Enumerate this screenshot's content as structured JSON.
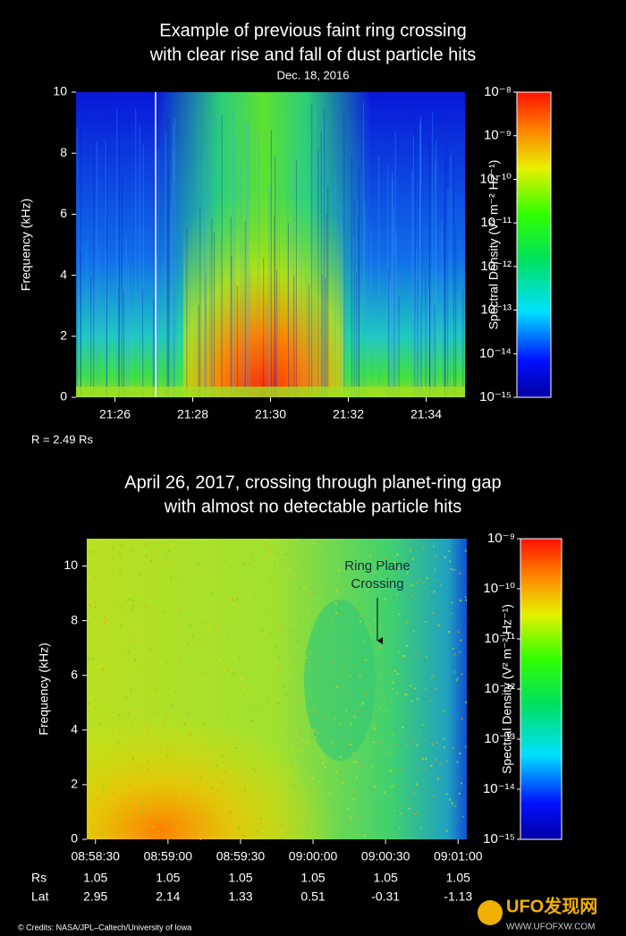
{
  "chart_data": [
    {
      "type": "spectrogram",
      "title": [
        "Example of previous faint ring crossing",
        "with clear rise and fall of dust particle hits"
      ],
      "subtitle": "Dec. 18, 2016",
      "ylabel": "Frequency (kHz)",
      "ylim": [
        0,
        10
      ],
      "yticks": [
        0,
        2,
        4,
        6,
        8,
        10
      ],
      "xticks": [
        "21:26",
        "21:28",
        "21:30",
        "21:32",
        "21:34"
      ],
      "colorbar_label": "Spectral Density (V² m⁻² Hz⁻¹)",
      "clim": [
        1e-15,
        1e-08
      ],
      "clog": true,
      "cticks": [
        {
          "value": 1e-15,
          "label": "10⁻¹⁵"
        },
        {
          "value": 1e-14,
          "label": "10⁻¹⁴"
        },
        {
          "value": 1e-13,
          "label": "10⁻¹³"
        },
        {
          "value": 1e-12,
          "label": "10⁻¹²"
        },
        {
          "value": 1e-11,
          "label": "10⁻¹¹"
        },
        {
          "value": 1e-10,
          "label": "10⁻¹⁰"
        },
        {
          "value": 1e-09,
          "label": "10⁻⁹"
        },
        {
          "value": 1e-08,
          "label": "10⁻⁸"
        }
      ],
      "note": "R = 2.49 Rs"
    },
    {
      "type": "spectrogram",
      "title": [
        "April 26, 2017, crossing through planet-ring gap",
        "with almost no detectable particle hits"
      ],
      "ylabel": "Frequency (kHz)",
      "ylim": [
        0,
        11
      ],
      "yticks": [
        0,
        2,
        4,
        6,
        8,
        10
      ],
      "xticks": [
        "08:58:30",
        "08:59:00",
        "08:59:30",
        "09:00:00",
        "09:00:30",
        "09:01:00"
      ],
      "colorbar_label": "Spectral Density (V² m⁻² Hz⁻¹)",
      "clim": [
        1e-15,
        1e-09
      ],
      "clog": true,
      "cticks": [
        {
          "value": 1e-15,
          "label": "10⁻¹⁵"
        },
        {
          "value": 1e-14,
          "label": "10⁻¹⁴"
        },
        {
          "value": 1e-13,
          "label": "10⁻¹³"
        },
        {
          "value": 1e-12,
          "label": "10⁻¹²"
        },
        {
          "value": 1e-11,
          "label": "10⁻¹¹"
        },
        {
          "value": 1e-10,
          "label": "10⁻¹⁰"
        },
        {
          "value": 1e-09,
          "label": "10⁻⁹"
        }
      ],
      "annotation": [
        "Ring Plane",
        "Crossing"
      ],
      "rows": [
        {
          "label": "Rs",
          "values": [
            1.05,
            1.05,
            1.05,
            1.05,
            1.05,
            1.05
          ]
        },
        {
          "label": "Lat",
          "values": [
            2.95,
            2.14,
            1.33,
            0.51,
            -0.31,
            -1.13
          ]
        }
      ]
    }
  ],
  "credits": "© Credits: NASA/JPL–Caltech/University of Iowa",
  "watermark": [
    "UFO发现网",
    "WWW.UFOFXW.COM"
  ]
}
